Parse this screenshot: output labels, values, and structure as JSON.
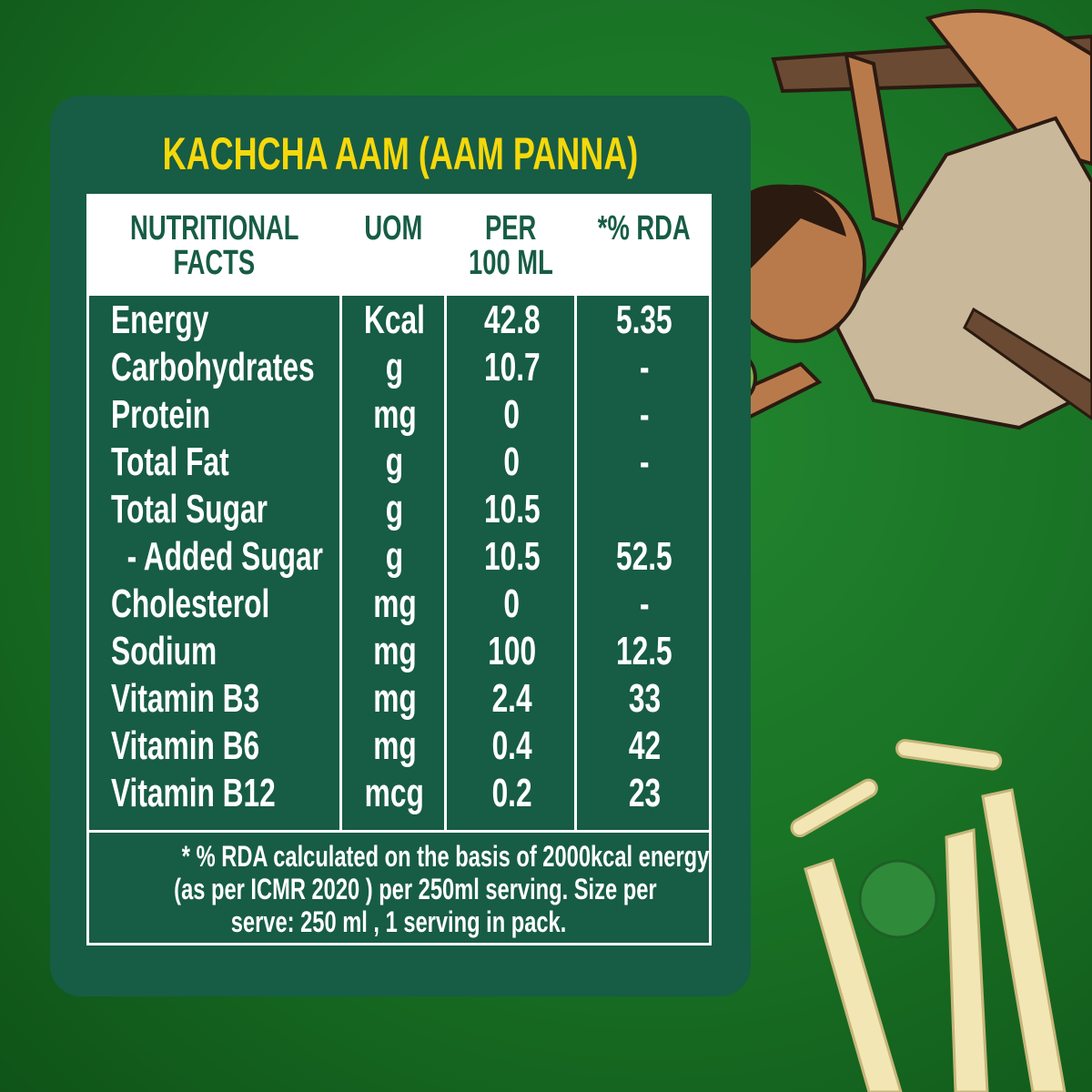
{
  "title": "KACHCHA AAM (AAM PANNA)",
  "colors": {
    "panel": "#175c45",
    "title": "#f6d80b",
    "background": "#1a7426",
    "header_bg": "#ffffff"
  },
  "table": {
    "headers": [
      {
        "line1": "NUTRITIONAL",
        "line2": "FACTS"
      },
      {
        "line1": "UOM",
        "line2": ""
      },
      {
        "line1": "PER",
        "line2": "100 ML"
      },
      {
        "line1": "*% RDA",
        "line2": ""
      }
    ],
    "rows": [
      {
        "nutrient": "Energy",
        "uom": "Kcal",
        "per_100ml": "42.8",
        "rda": "5.35"
      },
      {
        "nutrient": "Carbohydrates",
        "uom": "g",
        "per_100ml": "10.7",
        "rda": "-"
      },
      {
        "nutrient": "Protein",
        "uom": "mg",
        "per_100ml": "0",
        "rda": "-"
      },
      {
        "nutrient": "Total Fat",
        "uom": "g",
        "per_100ml": "0",
        "rda": "-"
      },
      {
        "nutrient": "Total Sugar",
        "uom": "g",
        "per_100ml": "10.5",
        "rda": ""
      },
      {
        "nutrient": "  - Added Sugar",
        "uom": "g",
        "per_100ml": "10.5",
        "rda": "52.5"
      },
      {
        "nutrient": "Cholesterol",
        "uom": "mg",
        "per_100ml": "0",
        "rda": "-"
      },
      {
        "nutrient": "Sodium",
        "uom": "mg",
        "per_100ml": "100",
        "rda": "12.5"
      },
      {
        "nutrient": "Vitamin B3",
        "uom": "mg",
        "per_100ml": "2.4",
        "rda": "33"
      },
      {
        "nutrient": "Vitamin B6",
        "uom": "mg",
        "per_100ml": "0.4",
        "rda": "42"
      },
      {
        "nutrient": "Vitamin B12",
        "uom": "mcg",
        "per_100ml": "0.2",
        "rda": "23"
      }
    ],
    "footnote": [
      "* % RDA calculated on the basis of 2000kcal energy",
      "(as per ICMR 2020 ) per 250ml serving. Size per",
      "serve: 250 ml , 1 serving in pack."
    ]
  },
  "illustration": {
    "subject": "boy-hanging-from-branch-holding-mango",
    "secondary": "cricket-wickets-and-ball"
  }
}
